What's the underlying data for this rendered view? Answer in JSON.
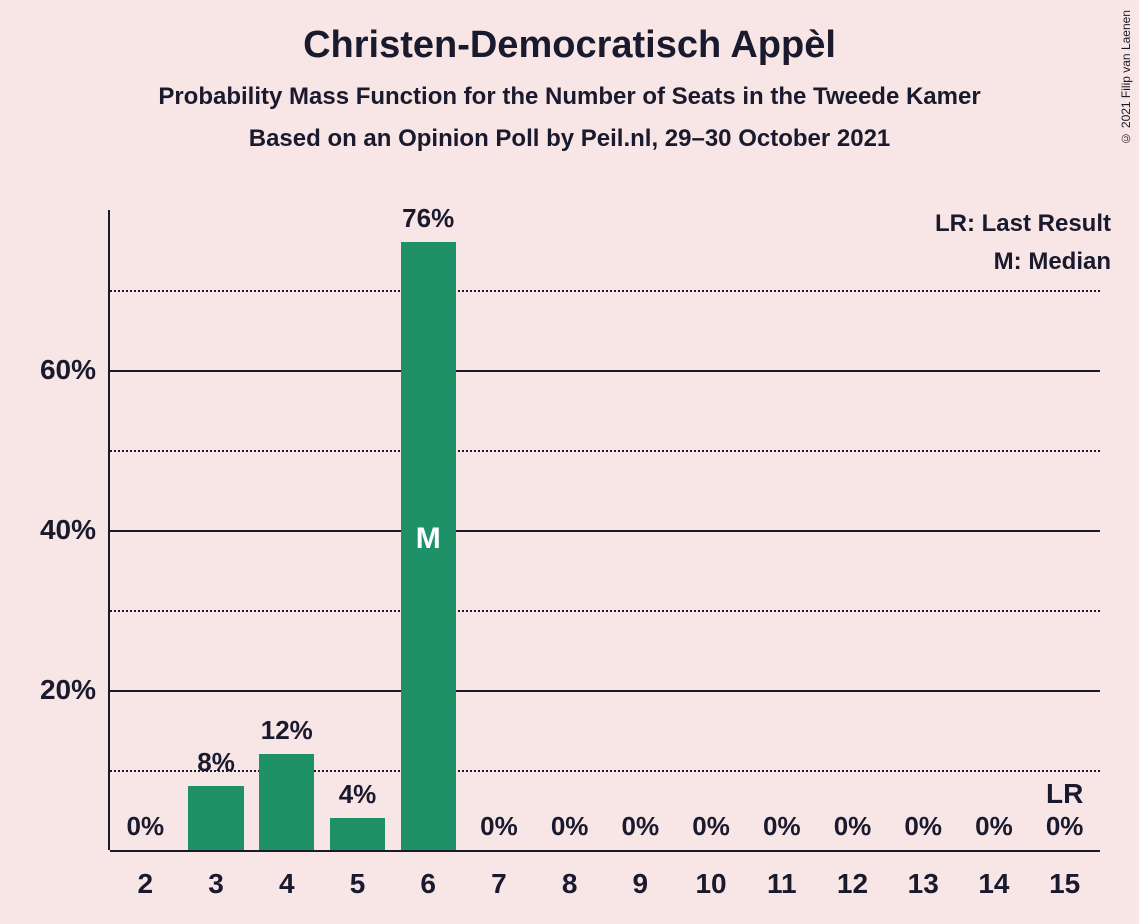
{
  "title": "Christen-Democratisch Appèl",
  "title_fontsize": 38,
  "subtitle1": "Probability Mass Function for the Number of Seats in the Tweede Kamer",
  "subtitle2": "Based on an Opinion Poll by Peil.nl, 29–30 October 2021",
  "subtitle_fontsize": 24,
  "legend_lr": "LR: Last Result",
  "legend_m": "M: Median",
  "legend_fontsize": 24,
  "credit": "© 2021 Filip van Laenen",
  "chart": {
    "type": "bar",
    "background_color": "#f8e5e5",
    "bar_color": "#1f9169",
    "text_color": "#1a1a2e",
    "grid_color": "#1a1a2e",
    "ylim": [
      0,
      80
    ],
    "y_major_ticks": [
      20,
      40,
      60
    ],
    "y_minor_ticks": [
      10,
      30,
      50,
      70
    ],
    "y_tick_label_fontsize": 28,
    "x_tick_label_fontsize": 28,
    "bar_label_fontsize": 26,
    "bar_width_ratio": 0.78,
    "median_index": 4,
    "median_label": "M",
    "median_label_fontsize": 30,
    "lr_index": 13,
    "lr_label": "LR",
    "lr_label_fontsize": 28,
    "categories": [
      "2",
      "3",
      "4",
      "5",
      "6",
      "7",
      "8",
      "9",
      "10",
      "11",
      "12",
      "13",
      "14",
      "15"
    ],
    "values": [
      0,
      8,
      12,
      4,
      76,
      0,
      0,
      0,
      0,
      0,
      0,
      0,
      0,
      0
    ],
    "value_labels": [
      "0%",
      "8%",
      "12%",
      "4%",
      "76%",
      "0%",
      "0%",
      "0%",
      "0%",
      "0%",
      "0%",
      "0%",
      "0%",
      "0%"
    ]
  }
}
